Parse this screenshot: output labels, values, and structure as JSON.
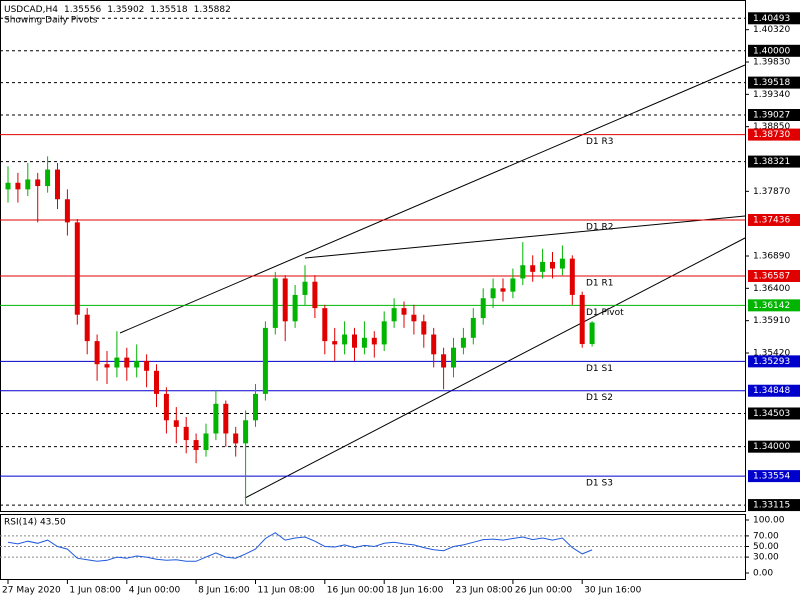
{
  "chart_data": {
    "type": "candlestick",
    "symbol": "USDCAD,H4",
    "subtitle": "Showing Daily Pivots",
    "categories": [
      "27 May 2020",
      null,
      null,
      null,
      null,
      null,
      "1 Jun 08:00",
      null,
      null,
      null,
      null,
      null,
      "4 Jun 00:00",
      null,
      null,
      null,
      null,
      null,
      null,
      "8 Jun 16:00",
      null,
      null,
      null,
      null,
      null,
      "11 Jun 08:00",
      null,
      null,
      null,
      null,
      null,
      null,
      "16 Jun 00:00",
      null,
      null,
      null,
      null,
      null,
      "18 Jun 16:00",
      null,
      null,
      null,
      null,
      null,
      null,
      "23 Jun 08:00",
      null,
      null,
      null,
      null,
      null,
      "26 Jun 00:00",
      null,
      null,
      null,
      null,
      null,
      null,
      "30 Jun 16:00",
      null
    ],
    "open": [
      1.379,
      1.38,
      1.379,
      1.3805,
      1.3795,
      1.382,
      1.3775,
      1.374,
      1.36,
      1.356,
      1.3525,
      1.352,
      1.3535,
      1.352,
      1.353,
      1.3515,
      1.348,
      1.344,
      1.343,
      1.341,
      1.3395,
      1.342,
      1.3465,
      1.342,
      1.3405,
      1.344,
      1.348,
      1.358,
      1.3655,
      1.359,
      1.363,
      1.365,
      1.361,
      1.356,
      1.3555,
      1.357,
      1.355,
      1.3565,
      1.3555,
      1.359,
      1.361,
      1.36,
      1.359,
      1.357,
      1.354,
      1.352,
      1.355,
      1.3565,
      1.3595,
      1.3625,
      1.364,
      1.3635,
      1.3655,
      1.3675,
      1.3665,
      1.368,
      1.367,
      1.3685,
      1.363,
      1.35556
    ],
    "high": [
      1.3825,
      1.3815,
      1.383,
      1.3815,
      1.384,
      1.383,
      1.379,
      1.3745,
      1.361,
      1.357,
      1.3545,
      1.3575,
      1.355,
      1.3555,
      1.354,
      1.3525,
      1.349,
      1.346,
      1.3445,
      1.342,
      1.3435,
      1.3485,
      1.347,
      1.343,
      1.3455,
      1.3495,
      1.359,
      1.3665,
      1.366,
      1.3645,
      1.3675,
      1.366,
      1.3615,
      1.358,
      1.359,
      1.358,
      1.359,
      1.3575,
      1.3605,
      1.3625,
      1.362,
      1.3615,
      1.36,
      1.358,
      1.355,
      1.3565,
      1.358,
      1.361,
      1.364,
      1.3655,
      1.3655,
      1.367,
      1.371,
      1.369,
      1.37,
      1.3695,
      1.3705,
      1.369,
      1.3635,
      1.35902
    ],
    "low": [
      1.377,
      1.377,
      1.378,
      1.374,
      1.3785,
      1.376,
      1.372,
      1.3585,
      1.354,
      1.35,
      1.3495,
      1.3505,
      1.35,
      1.3505,
      1.349,
      1.346,
      1.342,
      1.3405,
      1.339,
      1.3375,
      1.3385,
      1.341,
      1.34,
      1.3385,
      1.3312,
      1.343,
      1.347,
      1.357,
      1.356,
      1.358,
      1.3615,
      1.3595,
      1.354,
      1.353,
      1.354,
      1.353,
      1.354,
      1.3535,
      1.3545,
      1.358,
      1.358,
      1.357,
      1.355,
      1.352,
      1.3487,
      1.3505,
      1.354,
      1.3555,
      1.3585,
      1.361,
      1.362,
      1.3625,
      1.3645,
      1.365,
      1.3655,
      1.3655,
      1.366,
      1.3615,
      1.355,
      1.35518
    ],
    "close": [
      1.38,
      1.379,
      1.3805,
      1.3795,
      1.382,
      1.3775,
      1.374,
      1.36,
      1.356,
      1.3525,
      1.352,
      1.3535,
      1.352,
      1.353,
      1.3515,
      1.348,
      1.344,
      1.343,
      1.341,
      1.3395,
      1.342,
      1.3465,
      1.342,
      1.3405,
      1.344,
      1.348,
      1.358,
      1.3655,
      1.359,
      1.363,
      1.365,
      1.361,
      1.356,
      1.3555,
      1.357,
      1.355,
      1.3565,
      1.3555,
      1.359,
      1.361,
      1.36,
      1.359,
      1.357,
      1.354,
      1.352,
      1.355,
      1.3565,
      1.3595,
      1.3625,
      1.364,
      1.3635,
      1.3655,
      1.3675,
      1.3665,
      1.368,
      1.367,
      1.3685,
      1.363,
      1.35556,
      1.35882
    ],
    "up_color": "#00b400",
    "down_color": "#e00000",
    "ylim": [
      1.3301,
      1.4077
    ],
    "yticks": [
      {
        "value": 1.4032,
        "label": "1.40320"
      },
      {
        "value": 1.3983,
        "label": "1.39830"
      },
      {
        "value": 1.3934,
        "label": "1.39340"
      },
      {
        "value": 1.3885,
        "label": "1.38850"
      },
      {
        "value": 1.3787,
        "label": "1.37870"
      },
      {
        "value": 1.3689,
        "label": "1.36890"
      },
      {
        "value": 1.364,
        "label": "1.36400"
      },
      {
        "value": 1.3591,
        "label": "1.35910"
      },
      {
        "value": 1.3542,
        "label": "1.35420"
      }
    ],
    "levels": [
      {
        "value": 1.40493,
        "color": "#000000",
        "style": "dashed"
      },
      {
        "value": 1.4,
        "label": "1.40000",
        "color": "#000000",
        "style": "dashed"
      },
      {
        "value": 1.39518,
        "color": "#000000",
        "style": "dashed"
      },
      {
        "value": 1.39027,
        "color": "#000000",
        "style": "dashed"
      },
      {
        "value": 1.3873,
        "label": "1.38730",
        "color": "#e00000",
        "style": "solid",
        "name": "D1 R3"
      },
      {
        "value": 1.38321,
        "color": "#000000",
        "style": "dashed"
      },
      {
        "value": 1.37436,
        "color": "#e00000",
        "style": "solid",
        "name": "D1 R2"
      },
      {
        "value": 1.36587,
        "color": "#e00000",
        "style": "solid",
        "name": "D1 R1"
      },
      {
        "value": 1.36142,
        "color": "#00b400",
        "style": "solid",
        "name": "D1 Pivot"
      },
      {
        "value": 1.35293,
        "color": "#0000cc",
        "style": "solid",
        "name": "D1 S1"
      },
      {
        "value": 1.34848,
        "color": "#0000cc",
        "style": "solid",
        "name": "D1 S2"
      },
      {
        "value": 1.34503,
        "color": "#000000",
        "style": "dashed"
      },
      {
        "value": 1.34,
        "label": "1.34000",
        "color": "#000000",
        "style": "dashed"
      },
      {
        "value": 1.33554,
        "color": "#0000cc",
        "style": "solid",
        "name": "D1 S3"
      },
      {
        "value": 1.33115,
        "color": "#000000",
        "style": "dashed"
      }
    ],
    "rsi": {
      "title": "RSI(14) 43.50",
      "color": "#1e5adc",
      "values": [
        58,
        55,
        60,
        56,
        62,
        50,
        45,
        28,
        25,
        22,
        24,
        30,
        28,
        32,
        30,
        26,
        24,
        25,
        22,
        22,
        30,
        38,
        30,
        28,
        36,
        45,
        65,
        76,
        62,
        66,
        68,
        60,
        50,
        49,
        53,
        48,
        52,
        50,
        56,
        58,
        55,
        53,
        48,
        44,
        42,
        50,
        53,
        58,
        63,
        64,
        62,
        65,
        68,
        63,
        66,
        62,
        66,
        48,
        36,
        43.5
      ],
      "ylim": [
        0,
        100
      ],
      "yticks": [
        {
          "value": 100,
          "label": "100.00"
        },
        {
          "value": 70,
          "label": "70.00"
        },
        {
          "value": 50,
          "label": "50.00"
        },
        {
          "value": 30,
          "label": "30.00"
        },
        {
          "value": 0,
          "label": "0.00"
        }
      ],
      "grid_at": [
        70,
        50,
        30
      ]
    }
  }
}
